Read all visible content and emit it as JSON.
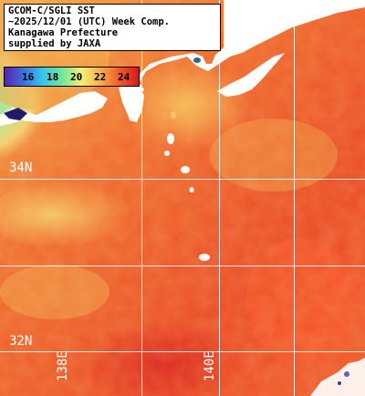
{
  "title_lines": [
    "GCOM-C/SGLI SST",
    "~2025/12/01 (UTC) Week Comp.",
    "Kanagawa Prefecture",
    "supplied by JAXA"
  ],
  "colorbar": {
    "ticks": [
      "16",
      "18",
      "20",
      "22",
      "24"
    ],
    "colors": [
      "#5a1fb0",
      "#3f6fe0",
      "#36c8e8",
      "#6ee89a",
      "#f2f07a",
      "#f7b04a",
      "#ef5a2a",
      "#d81818"
    ]
  },
  "latitude_labels": [
    "34N",
    "32N"
  ],
  "longitude_labels": [
    "138E",
    "140E"
  ],
  "colors": {
    "land": "#ffffff",
    "grid": "#ffffff",
    "warm": "#ee4a22",
    "cool": "#7fe0a0"
  }
}
